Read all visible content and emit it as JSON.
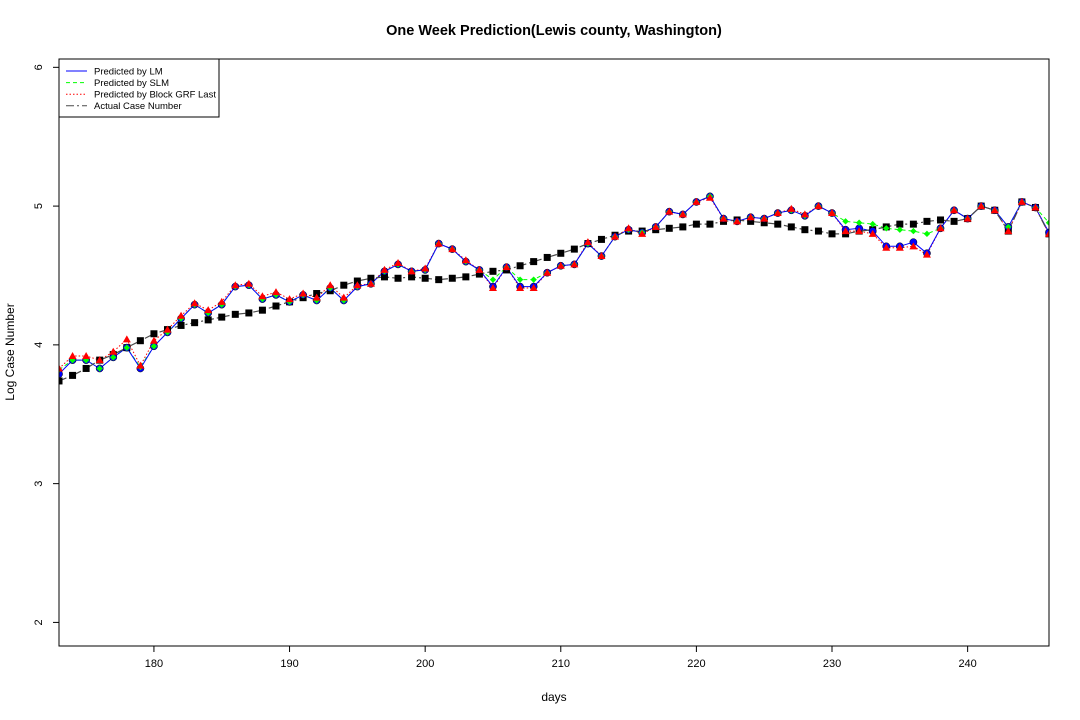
{
  "chart_data": {
    "type": "line",
    "title": "One Week Prediction(Lewis county, Washington)",
    "xlabel": "days",
    "ylabel": "Log Case Number",
    "xlim": [
      173,
      246
    ],
    "ylim": [
      1.83,
      6.06
    ],
    "xticks": [
      180,
      190,
      200,
      210,
      220,
      230,
      240
    ],
    "yticks": [
      2,
      3,
      4,
      5,
      6
    ],
    "grid": false,
    "legend_position": "top-left",
    "colors": {
      "lm": "#0000ff",
      "slm": "#00ff00",
      "grf": "#ff0000",
      "actual": "#000000",
      "connector": "#4a4a4a"
    },
    "x": [
      173,
      174,
      175,
      176,
      177,
      178,
      179,
      180,
      181,
      182,
      183,
      184,
      185,
      186,
      187,
      188,
      189,
      190,
      191,
      192,
      193,
      194,
      195,
      196,
      197,
      198,
      199,
      200,
      201,
      202,
      203,
      204,
      205,
      206,
      207,
      208,
      209,
      210,
      211,
      212,
      213,
      214,
      215,
      216,
      217,
      218,
      219,
      220,
      221,
      222,
      223,
      224,
      225,
      226,
      227,
      228,
      229,
      230,
      231,
      232,
      233,
      234,
      235,
      236,
      237,
      238,
      239,
      240,
      241,
      242,
      243,
      244,
      245,
      246
    ],
    "series": [
      {
        "name": "Predicted by LM",
        "key": "lm",
        "values": [
          3.79,
          3.89,
          3.89,
          3.83,
          3.91,
          3.98,
          3.83,
          3.99,
          4.09,
          4.19,
          4.29,
          4.23,
          4.29,
          4.42,
          4.43,
          4.33,
          4.36,
          4.31,
          4.36,
          4.32,
          4.41,
          4.32,
          4.42,
          4.44,
          4.53,
          4.58,
          4.53,
          4.54,
          4.73,
          4.69,
          4.6,
          4.54,
          4.42,
          4.56,
          4.42,
          4.42,
          4.52,
          4.57,
          4.58,
          4.73,
          4.64,
          4.78,
          4.83,
          4.81,
          4.85,
          4.96,
          4.94,
          5.03,
          5.07,
          4.91,
          4.89,
          4.92,
          4.91,
          4.95,
          4.97,
          4.93,
          5.0,
          4.95,
          4.83,
          4.84,
          4.82,
          4.71,
          4.71,
          4.74,
          4.66,
          4.84,
          4.97,
          4.91,
          5.0,
          4.97,
          4.85,
          5.03,
          4.99,
          4.81
        ]
      },
      {
        "name": "Predicted by SLM",
        "key": "slm",
        "values": [
          3.82,
          3.89,
          3.89,
          3.83,
          3.91,
          3.98,
          3.84,
          3.99,
          4.09,
          4.19,
          4.29,
          4.23,
          4.29,
          4.42,
          4.43,
          4.33,
          4.36,
          4.31,
          4.36,
          4.32,
          4.41,
          4.32,
          4.42,
          4.44,
          4.53,
          4.58,
          4.53,
          4.54,
          4.73,
          4.69,
          4.6,
          4.54,
          4.47,
          4.56,
          4.47,
          4.47,
          4.52,
          4.57,
          4.58,
          4.73,
          4.64,
          4.78,
          4.83,
          4.81,
          4.85,
          4.96,
          4.94,
          5.03,
          5.07,
          4.91,
          4.89,
          4.92,
          4.91,
          4.95,
          4.97,
          4.93,
          5.0,
          4.95,
          4.89,
          4.88,
          4.87,
          4.84,
          4.83,
          4.82,
          4.8,
          4.84,
          4.97,
          4.91,
          5.0,
          4.97,
          4.85,
          5.03,
          4.99,
          4.88
        ]
      },
      {
        "name": "Predicted by Block GRF Last",
        "key": "grf",
        "values": [
          3.83,
          3.92,
          3.92,
          3.89,
          3.95,
          4.04,
          3.85,
          4.03,
          4.11,
          4.21,
          4.3,
          4.25,
          4.31,
          4.43,
          4.44,
          4.35,
          4.38,
          4.33,
          4.37,
          4.34,
          4.43,
          4.34,
          4.43,
          4.44,
          4.54,
          4.59,
          4.53,
          4.55,
          4.73,
          4.69,
          4.61,
          4.54,
          4.41,
          4.56,
          4.41,
          4.41,
          4.52,
          4.57,
          4.58,
          4.74,
          4.64,
          4.78,
          4.84,
          4.8,
          4.85,
          4.96,
          4.94,
          5.03,
          5.06,
          4.91,
          4.89,
          4.92,
          4.91,
          4.95,
          4.98,
          4.94,
          5.0,
          4.95,
          4.82,
          4.82,
          4.8,
          4.7,
          4.7,
          4.71,
          4.65,
          4.84,
          4.97,
          4.91,
          5.0,
          4.97,
          4.82,
          5.03,
          4.99,
          4.8
        ]
      },
      {
        "name": "Actual Case Number",
        "key": "actual",
        "values": [
          3.74,
          3.78,
          3.83,
          3.89,
          3.93,
          3.98,
          4.03,
          4.08,
          4.11,
          4.14,
          4.16,
          4.18,
          4.2,
          4.22,
          4.23,
          4.25,
          4.28,
          4.31,
          4.34,
          4.37,
          4.39,
          4.43,
          4.46,
          4.48,
          4.49,
          4.48,
          4.49,
          4.48,
          4.47,
          4.48,
          4.49,
          4.51,
          4.53,
          4.54,
          4.57,
          4.6,
          4.63,
          4.66,
          4.69,
          4.73,
          4.76,
          4.79,
          4.82,
          4.82,
          4.83,
          4.84,
          4.85,
          4.87,
          4.87,
          4.89,
          4.9,
          4.89,
          4.88,
          4.87,
          4.85,
          4.83,
          4.82,
          4.8,
          4.8,
          4.82,
          4.83,
          4.85,
          4.87,
          4.87,
          4.89,
          4.9,
          4.89,
          4.91,
          5.0,
          4.97,
          4.82,
          5.03,
          4.99,
          4.8
        ]
      }
    ]
  }
}
